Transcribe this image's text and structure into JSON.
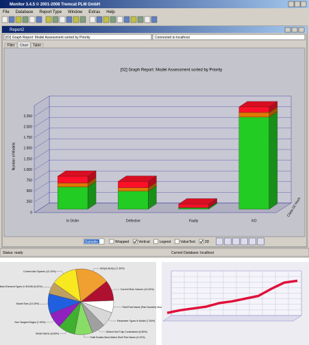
{
  "window": {
    "title": "Monitor 3.4.5 © 2001-2008 Tremcat PLM GmbH",
    "menus": [
      "File",
      "Database",
      "Report Type",
      "Window",
      "Extras",
      "Help"
    ]
  },
  "report": {
    "title": "Report2",
    "info": "[02] Graph Report: Model Assessment sorted by Priority",
    "connection": "Connected to localhost",
    "tabs": [
      "Filter",
      "Chart",
      "Table"
    ],
    "active_tab": 1
  },
  "controls": {
    "select": "Subsidie",
    "checkboxes": [
      {
        "label": "Wrapped",
        "checked": false
      },
      {
        "label": "Vertical",
        "checked": true
      },
      {
        "label": "Legend",
        "checked": false
      },
      {
        "label": "ValueText",
        "checked": false
      },
      {
        "label": "3D",
        "checked": true
      }
    ]
  },
  "status": {
    "left": "Status: ready",
    "right": "Current Database: localhost"
  },
  "chart_data": [
    {
      "type": "bar",
      "stacked": true,
      "three_d": true,
      "title": "[02] Graph Report: Model Assessment sorted by Priority",
      "ylabel": "Number of Models",
      "depth_label": "Class 02 Hoch",
      "categories": [
        "In Order",
        "Defective",
        "Faulty",
        "KO"
      ],
      "series": [
        {
          "color": "#22cc22",
          "values": [
            520,
            420,
            30,
            2150
          ]
        },
        {
          "color": "#e07800",
          "values": [
            90,
            80,
            10,
            110
          ]
        },
        {
          "color": "#ff1028",
          "values": [
            160,
            150,
            80,
            130
          ]
        }
      ],
      "ylim": [
        0,
        2500
      ],
      "yticks": [
        0,
        250,
        500,
        750,
        {
          "value": 1000,
          "label": "1.000"
        },
        {
          "value": 1250,
          "label": "1.250"
        },
        {
          "value": 1500,
          "label": "1.500"
        },
        {
          "value": 1750,
          "label": "1.750"
        },
        {
          "value": 2000,
          "label": "2.000"
        },
        {
          "value": 2250,
          "label": "2.250"
        }
      ],
      "grid": true
    },
    {
      "type": "pie",
      "labels": [
        "Current Rule Volume (10.40%)",
        "Shell Part Name (Part Number) Must Match",
        "Parameter Types in Model (7.50%)",
        "Sketch Not Fully Constrained (6.80%)",
        "Solid Bodies Must Match Shell Part Name (9.10%)",
        "Model Name (8.60%)",
        "Non Tangent Edges (7.90%)",
        "Model Size (10.20%)",
        "Predefined Element Types in SHOW (6.00%)",
        "Current Adv System (13.19%)",
        "Simple Body (17.30%)"
      ],
      "values": [
        10.4,
        6.2,
        7.5,
        6.8,
        9.1,
        8.6,
        7.9,
        10.2,
        6.0,
        13.19,
        17.3
      ],
      "colors": [
        "#b01030",
        "#ffffff",
        "#d8d8d8",
        "#a0a0a0",
        "#88dd66",
        "#40b030",
        "#9020c0",
        "#2060e0",
        "#c0a060",
        "#f8e820",
        "#f0a030"
      ]
    },
    {
      "type": "line",
      "three_d": true,
      "categories": [
        null,
        null,
        null,
        null,
        null,
        null,
        null,
        null,
        null,
        null,
        null
      ],
      "series": [
        {
          "color": "#e0103a",
          "values": [
            12,
            18,
            22,
            26,
            34,
            38,
            44,
            50,
            66,
            80,
            84
          ]
        }
      ],
      "ylim": [
        0,
        100
      ]
    }
  ]
}
